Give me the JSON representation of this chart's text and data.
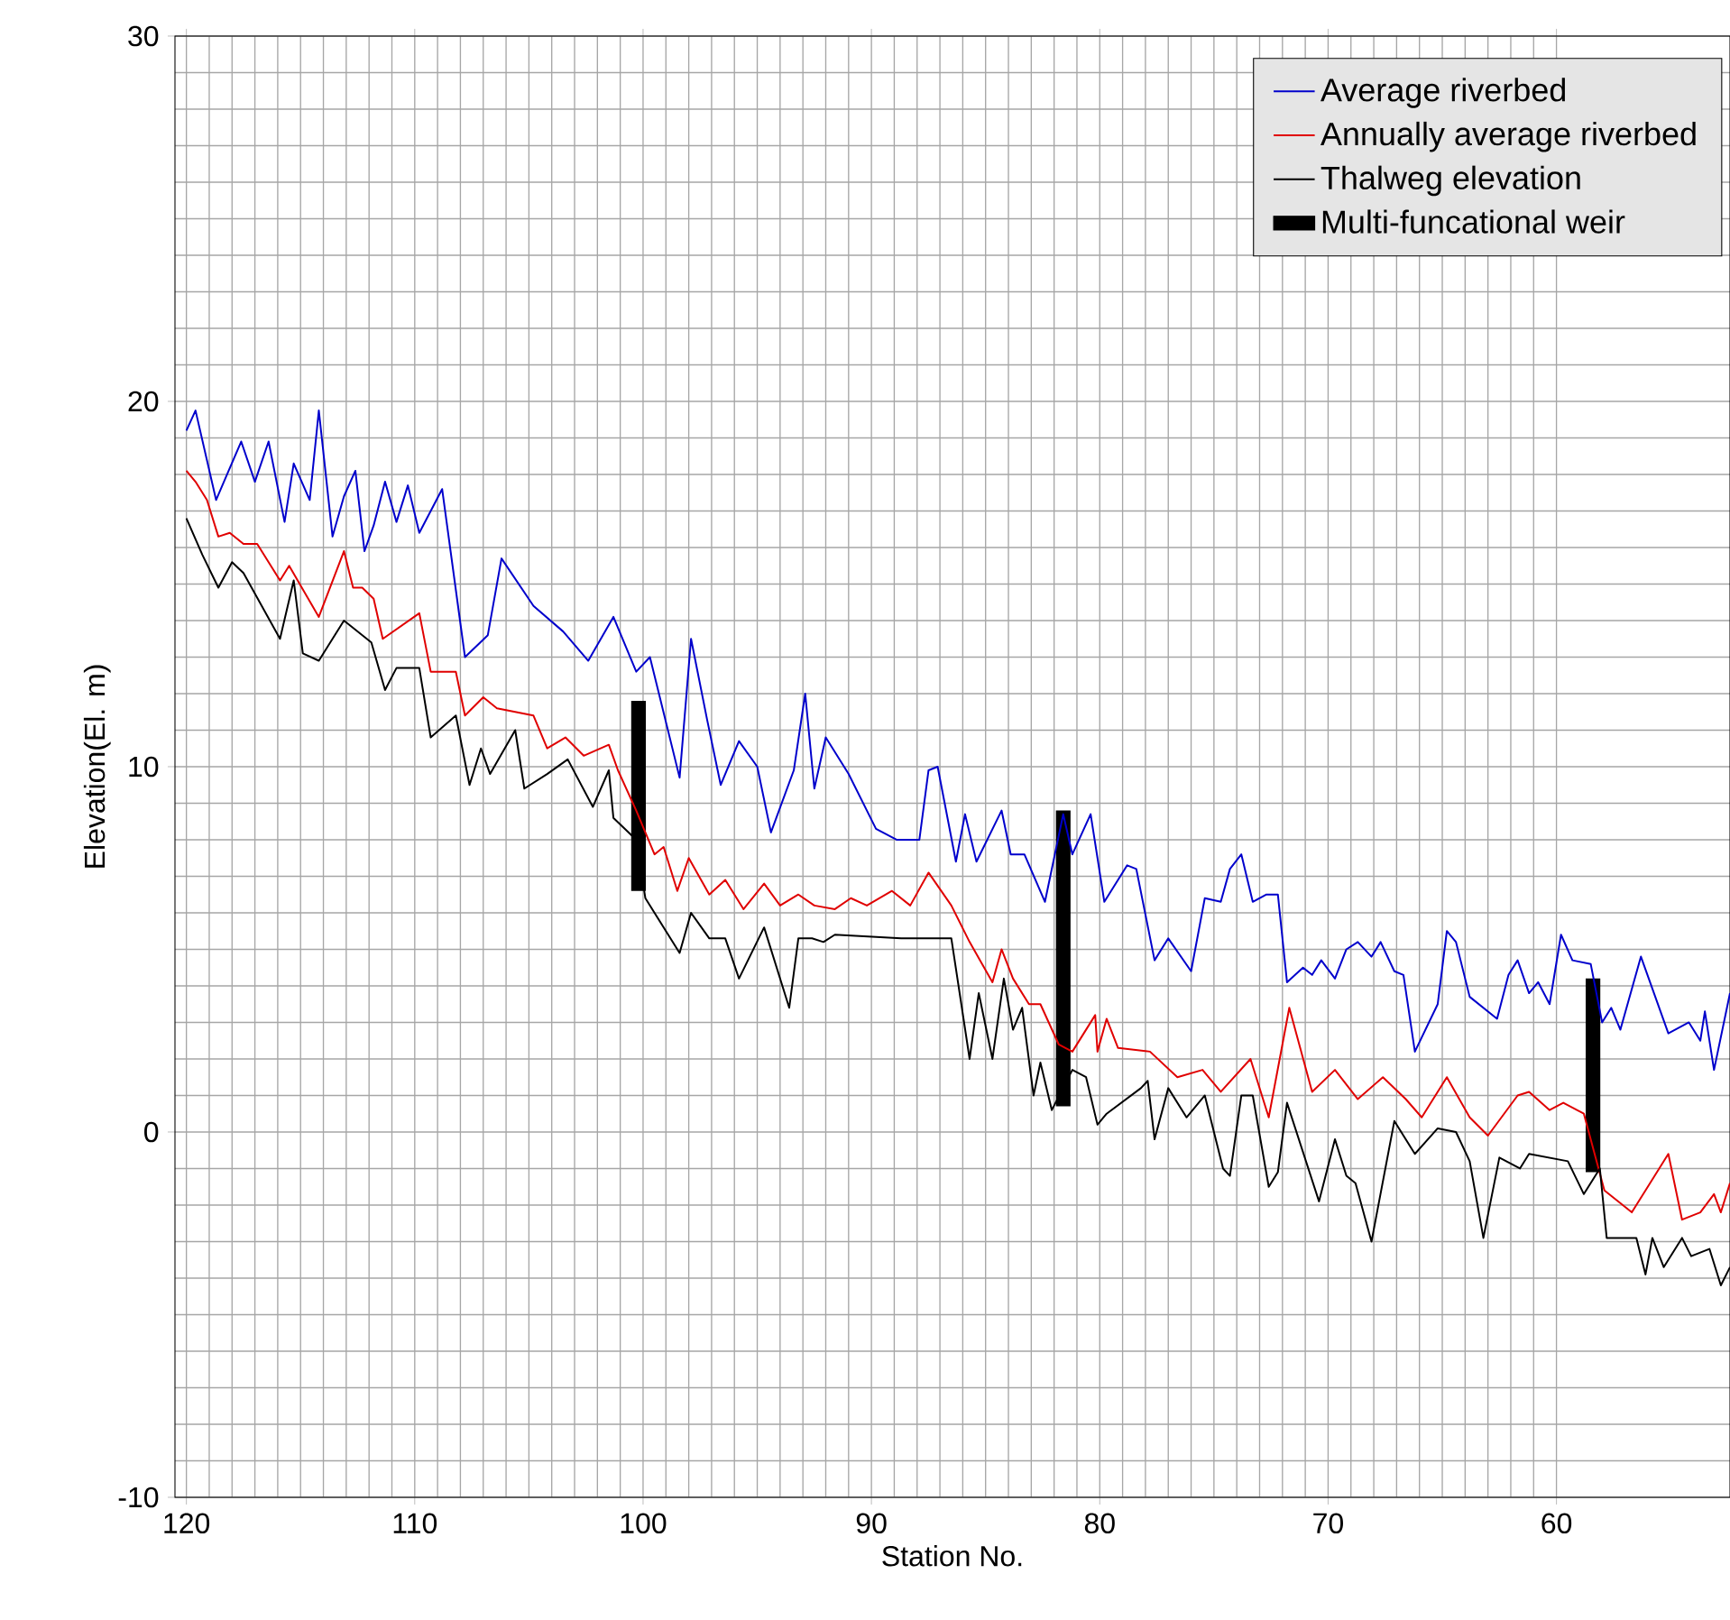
{
  "chart_data": {
    "type": "line",
    "xlabel": "Station No.",
    "ylabel": "Elevation(El. m)",
    "xlim": [
      120.5,
      52.4
    ],
    "ylim": [
      -10,
      30
    ],
    "xticks": [
      120,
      110,
      100,
      90,
      80,
      70,
      60
    ],
    "yticks": [
      -10,
      0,
      10,
      20,
      30
    ],
    "grid": true,
    "legend": "top right",
    "line_style": "solid",
    "series": [
      {
        "name": "Average riverbed",
        "color": "#0000cc",
        "x": [
          120,
          119.6,
          118.7,
          117.6,
          117,
          116.4,
          115.7,
          115.3,
          114.6,
          114.2,
          113.6,
          113.1,
          112.6,
          112.2,
          111.8,
          111.3,
          110.8,
          110.3,
          109.8,
          108.8,
          107.8,
          106.8,
          106.2,
          104.8,
          103.5,
          102.4,
          101.3,
          100.3,
          99.7,
          98.4,
          97.9,
          97.2,
          96.6,
          95.8,
          95.0,
          94.4,
          93.4,
          92.9,
          92.5,
          92.0,
          91.0,
          89.8,
          88.9,
          87.9,
          87.5,
          87.1,
          86.3,
          85.9,
          85.4,
          84.3,
          83.9,
          83.3,
          82.4,
          81.6,
          81.2,
          80.4,
          79.8,
          78.8,
          78.4,
          77.6,
          77.0,
          76.0,
          75.4,
          74.7,
          74.3,
          73.8,
          73.3,
          72.7,
          72.2,
          71.8,
          71.1,
          70.7,
          70.3,
          69.7,
          69.2,
          68.7,
          68.1,
          67.7,
          67.1,
          66.7,
          66.2,
          65.2,
          64.8,
          64.4,
          63.8,
          62.6,
          62.1,
          61.7,
          61.2,
          60.8,
          60.3,
          59.8,
          59.3,
          58.5,
          58.0,
          57.6,
          57.2,
          56.3,
          55.1,
          54.2,
          53.7,
          53.5,
          53.1,
          52.4
        ],
        "values": [
          19.2,
          19.75,
          17.3,
          18.9,
          17.8,
          18.9,
          16.7,
          18.3,
          17.3,
          19.75,
          16.3,
          17.4,
          18.1,
          15.9,
          16.6,
          17.8,
          16.7,
          17.7,
          16.4,
          17.6,
          13.0,
          13.6,
          15.7,
          14.4,
          13.7,
          12.9,
          14.1,
          12.6,
          13.0,
          9.7,
          13.5,
          11.3,
          9.5,
          10.7,
          10.0,
          8.2,
          9.9,
          12.0,
          9.4,
          10.8,
          9.8,
          8.3,
          8.0,
          8.0,
          9.9,
          10.0,
          7.4,
          8.7,
          7.4,
          8.8,
          7.6,
          7.6,
          6.3,
          8.7,
          7.6,
          8.7,
          6.3,
          7.3,
          7.2,
          4.7,
          5.3,
          4.4,
          6.4,
          6.3,
          7.2,
          7.6,
          6.3,
          6.5,
          6.5,
          4.1,
          4.5,
          4.3,
          4.7,
          4.2,
          5.0,
          5.2,
          4.8,
          5.2,
          4.4,
          4.3,
          2.2,
          3.5,
          5.5,
          5.2,
          3.7,
          3.1,
          4.3,
          4.7,
          3.8,
          4.1,
          3.5,
          5.4,
          4.7,
          4.6,
          3.0,
          3.4,
          2.8,
          4.8,
          2.7,
          3.0,
          2.5,
          3.3,
          1.7,
          3.8
        ]
      },
      {
        "name": "Annually average riverbed",
        "color": "#e00000",
        "x": [
          120,
          119.6,
          119.1,
          118.6,
          118.1,
          117.5,
          116.9,
          115.9,
          115.5,
          114.2,
          113.1,
          112.7,
          112.3,
          111.8,
          111.4,
          109.8,
          109.3,
          108.2,
          107.8,
          107.0,
          106.4,
          104.8,
          104.2,
          103.4,
          102.6,
          101.5,
          101.1,
          100.3,
          99.9,
          99.5,
          99.1,
          98.5,
          98.0,
          97.1,
          96.4,
          95.6,
          94.7,
          94.0,
          93.2,
          92.5,
          91.6,
          90.9,
          90.2,
          89.1,
          88.3,
          87.5,
          86.5,
          85.7,
          84.7,
          84.3,
          83.8,
          83.1,
          82.6,
          81.8,
          81.2,
          80.2,
          80.1,
          79.7,
          79.2,
          77.8,
          76.6,
          75.5,
          74.7,
          73.4,
          72.6,
          71.7,
          70.7,
          69.7,
          68.7,
          67.6,
          66.6,
          65.9,
          64.8,
          63.8,
          63.0,
          61.7,
          61.2,
          60.3,
          59.7,
          58.8,
          57.9,
          56.7,
          56.1,
          55.1,
          54.5,
          53.7,
          53.1,
          52.8,
          52.4
        ],
        "values": [
          18.1,
          17.8,
          17.3,
          16.3,
          16.4,
          16.1,
          16.1,
          15.1,
          15.5,
          14.1,
          15.9,
          14.9,
          14.9,
          14.6,
          13.5,
          14.2,
          12.6,
          12.6,
          11.4,
          11.9,
          11.6,
          11.4,
          10.5,
          10.8,
          10.3,
          10.6,
          9.9,
          8.8,
          8.2,
          7.6,
          7.8,
          6.6,
          7.5,
          6.5,
          6.9,
          6.1,
          6.8,
          6.2,
          6.5,
          6.2,
          6.1,
          6.4,
          6.2,
          6.6,
          6.2,
          7.1,
          6.2,
          5.2,
          4.1,
          5.0,
          4.2,
          3.5,
          3.5,
          2.4,
          2.2,
          3.2,
          2.2,
          3.1,
          2.3,
          2.2,
          1.5,
          1.7,
          1.1,
          2.0,
          0.4,
          3.4,
          1.1,
          1.7,
          0.9,
          1.5,
          0.9,
          0.4,
          1.5,
          0.4,
          -0.1,
          1.0,
          1.1,
          0.6,
          0.8,
          0.5,
          -1.6,
          -2.2,
          -1.6,
          -0.6,
          -2.4,
          -2.2,
          -1.7,
          -2.2,
          -1.4
        ]
      },
      {
        "name": "Thalweg elevation",
        "color": "#000000",
        "x": [
          120,
          119.3,
          118.6,
          118.0,
          117.5,
          115.9,
          115.3,
          114.9,
          114.2,
          113.1,
          111.9,
          111.3,
          110.8,
          109.8,
          109.3,
          108.2,
          107.6,
          107.1,
          106.7,
          105.6,
          105.2,
          104.2,
          103.3,
          102.2,
          101.5,
          101.3,
          100.3,
          99.9,
          98.4,
          97.9,
          97.1,
          96.4,
          95.8,
          94.7,
          93.6,
          93.2,
          92.6,
          92.1,
          91.6,
          88.7,
          86.5,
          85.7,
          85.3,
          84.7,
          84.2,
          83.8,
          83.4,
          82.9,
          82.6,
          82.1,
          81.2,
          80.6,
          80.1,
          79.7,
          78.2,
          77.9,
          77.6,
          77.0,
          76.2,
          75.4,
          74.6,
          74.3,
          73.8,
          73.3,
          72.6,
          72.2,
          71.8,
          70.4,
          69.7,
          69.2,
          68.8,
          68.1,
          67.1,
          66.2,
          65.2,
          64.4,
          63.8,
          63.2,
          62.5,
          61.6,
          61.2,
          59.5,
          58.8,
          58.1,
          57.8,
          56.5,
          56.1,
          55.8,
          55.3,
          54.5,
          54.1,
          53.3,
          52.8,
          52.4
        ],
        "values": [
          16.8,
          15.8,
          14.9,
          15.6,
          15.3,
          13.5,
          15.1,
          13.1,
          12.9,
          14.0,
          13.4,
          12.1,
          12.7,
          12.7,
          10.8,
          11.4,
          9.5,
          10.5,
          9.8,
          11.0,
          9.4,
          9.8,
          10.2,
          8.9,
          9.9,
          8.6,
          8.0,
          6.4,
          4.9,
          6.0,
          5.3,
          5.3,
          4.2,
          5.6,
          3.4,
          5.3,
          5.3,
          5.2,
          5.4,
          5.3,
          5.3,
          2.0,
          3.8,
          2.0,
          4.2,
          2.8,
          3.4,
          1.0,
          1.9,
          0.6,
          1.7,
          1.5,
          0.2,
          0.5,
          1.2,
          1.4,
          -0.2,
          1.2,
          0.4,
          1.0,
          -1.0,
          -1.2,
          1.0,
          1.0,
          -1.5,
          -1.1,
          0.8,
          -1.9,
          -0.2,
          -1.2,
          -1.4,
          -3.0,
          0.3,
          -0.6,
          0.1,
          0.0,
          -0.8,
          -2.9,
          -0.7,
          -1.0,
          -0.6,
          -0.8,
          -1.7,
          -1.0,
          -2.9,
          -2.9,
          -3.9,
          -2.9,
          -3.7,
          -2.9,
          -3.4,
          -3.2,
          -4.2,
          -3.7
        ]
      },
      {
        "name": "Multi-funcational weir",
        "type": "bar",
        "color": "#000000",
        "x": [
          100.2,
          81.6,
          58.4
        ],
        "base": [
          6.6,
          0.7,
          -1.1
        ],
        "values": [
          5.2,
          8.1,
          5.3
        ]
      }
    ]
  }
}
